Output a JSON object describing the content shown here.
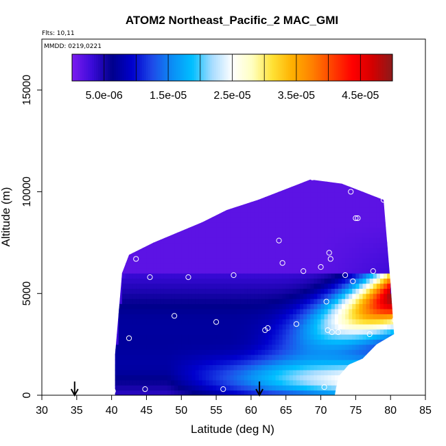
{
  "chart_data": {
    "type": "heatmap",
    "title": "ATOM2 Northeast_Pacific_2 MAC_GMI",
    "annotations": [
      "Flts: 10,11",
      "MMDD: 0219,0221"
    ],
    "xlabel": "Latitude (deg N)",
    "ylabel": "Altitude (m)",
    "xlim": [
      30,
      85
    ],
    "ylim": [
      0,
      17500
    ],
    "xticks": [
      "30",
      "35",
      "40",
      "45",
      "50",
      "55",
      "60",
      "65",
      "70",
      "75",
      "80",
      "85"
    ],
    "yticks": [
      "0",
      "5000",
      "10000",
      "15000"
    ],
    "grid": false,
    "colorbar": {
      "placement": "top-inside",
      "range": [
        0,
        5e-05
      ],
      "tick_labels": [
        "5.0e-06",
        "1.5e-05",
        "2.5e-05",
        "3.5e-05",
        "4.5e-05"
      ],
      "tick_values": [
        5e-06,
        1.5e-05,
        2.5e-05,
        3.5e-05,
        4.5e-05
      ],
      "colors": [
        "#7c1cf0",
        "#3a0ad8",
        "#00008b",
        "#0000cd",
        "#1e4ae8",
        "#0b8df5",
        "#00bfff",
        "#a8dcff",
        "#ffffff",
        "#ffffc0",
        "#ffe135",
        "#ffb000",
        "#ff8000",
        "#ff4000",
        "#ff0000",
        "#d40000",
        "#8b1a1a"
      ]
    },
    "top_profile": [
      [
        40.5,
        2000
      ],
      [
        41,
        4000
      ],
      [
        41.5,
        6000
      ],
      [
        42.5,
        6900
      ],
      [
        46,
        7500
      ],
      [
        49.5,
        8000
      ],
      [
        53,
        8500
      ],
      [
        56.5,
        9100
      ],
      [
        61,
        9600
      ],
      [
        67,
        10400
      ],
      [
        68.5,
        10600
      ],
      [
        73,
        10400
      ],
      [
        76,
        10000
      ],
      [
        77.5,
        9800
      ],
      [
        79,
        9600
      ],
      [
        80,
        5500
      ]
    ],
    "bottom_profile": [
      [
        40.5,
        0
      ],
      [
        72,
        0
      ],
      [
        72.5,
        900
      ],
      [
        74,
        1500
      ],
      [
        76,
        1800
      ],
      [
        78,
        2500
      ],
      [
        80.5,
        3000
      ]
    ],
    "arrow_latitudes": [
      34.7,
      61.2
    ],
    "points": [
      [
        40.2,
        200
      ],
      [
        42.5,
        2800
      ],
      [
        43.5,
        6700
      ],
      [
        44.8,
        300
      ],
      [
        45.5,
        5800
      ],
      [
        49.0,
        3900
      ],
      [
        51.0,
        5800
      ],
      [
        55.0,
        3600
      ],
      [
        56.0,
        300
      ],
      [
        57.5,
        5900
      ],
      [
        62.0,
        3200
      ],
      [
        62.4,
        3300
      ],
      [
        64.0,
        7600
      ],
      [
        64.5,
        6500
      ],
      [
        66.5,
        3500
      ],
      [
        67.5,
        6100
      ],
      [
        68.8,
        10700
      ],
      [
        70.0,
        6300
      ],
      [
        70.5,
        400
      ],
      [
        70.8,
        4600
      ],
      [
        71.0,
        3200
      ],
      [
        71.2,
        7000
      ],
      [
        71.4,
        6700
      ],
      [
        71.6,
        3100
      ],
      [
        72.5,
        3100
      ],
      [
        73.5,
        5900
      ],
      [
        74.3,
        10000
      ],
      [
        74.6,
        5600
      ],
      [
        75.0,
        8700
      ],
      [
        75.3,
        8700
      ],
      [
        77.0,
        3000
      ],
      [
        77.5,
        6100
      ],
      [
        79.0,
        9600
      ],
      [
        80.3,
        7000
      ],
      [
        80.6,
        3700
      ]
    ]
  }
}
